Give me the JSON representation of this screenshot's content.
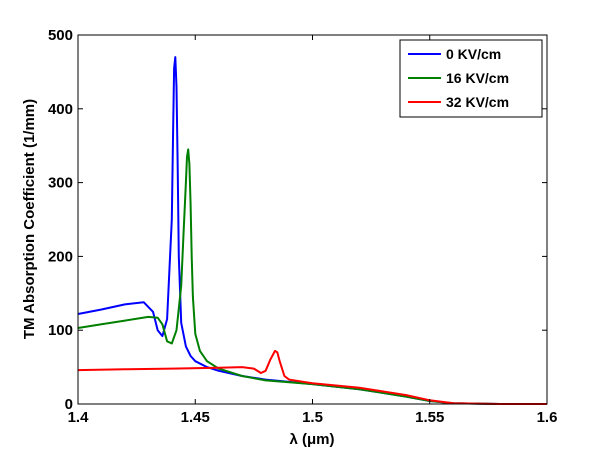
{
  "chart_data": {
    "type": "line",
    "title": "",
    "xlabel": "λ (μm)",
    "ylabel": "TM Absorption Coefficient (1/mm)",
    "xlim": [
      1.4,
      1.6
    ],
    "ylim": [
      0,
      500
    ],
    "xticks": [
      1.4,
      1.45,
      1.5,
      1.55,
      1.6
    ],
    "xtick_labels": [
      "1.4",
      "1.45",
      "1.5",
      "1.55",
      "1.6"
    ],
    "yticks": [
      0,
      100,
      200,
      300,
      400,
      500
    ],
    "ytick_labels": [
      "0",
      "100",
      "200",
      "300",
      "400",
      "500"
    ],
    "grid": false,
    "legend_position": "top-right",
    "series": [
      {
        "name": "0 KV/cm",
        "color": "#0000ff",
        "x": [
          1.4,
          1.41,
          1.42,
          1.428,
          1.432,
          1.434,
          1.436,
          1.438,
          1.44,
          1.4405,
          1.441,
          1.4415,
          1.442,
          1.4425,
          1.443,
          1.444,
          1.446,
          1.448,
          1.45,
          1.455,
          1.46,
          1.47,
          1.48,
          1.5,
          1.52,
          1.54,
          1.55,
          1.56,
          1.58,
          1.6
        ],
        "y": [
          122,
          128,
          135,
          138,
          125,
          100,
          92,
          115,
          250,
          360,
          455,
          470,
          430,
          320,
          200,
          110,
          78,
          65,
          58,
          50,
          45,
          38,
          33,
          27,
          20,
          10,
          4,
          1,
          0,
          0
        ]
      },
      {
        "name": "16 KV/cm",
        "color": "#008000",
        "x": [
          1.4,
          1.41,
          1.42,
          1.43,
          1.434,
          1.436,
          1.438,
          1.44,
          1.442,
          1.444,
          1.445,
          1.446,
          1.4465,
          1.447,
          1.4475,
          1.448,
          1.4485,
          1.449,
          1.45,
          1.452,
          1.455,
          1.46,
          1.47,
          1.48,
          1.5,
          1.52,
          1.54,
          1.55,
          1.56,
          1.58,
          1.6
        ],
        "y": [
          103,
          108,
          113,
          118,
          117,
          108,
          85,
          82,
          100,
          160,
          230,
          300,
          335,
          345,
          325,
          270,
          200,
          145,
          95,
          72,
          58,
          48,
          38,
          32,
          27,
          20,
          10,
          4,
          1,
          0,
          0
        ]
      },
      {
        "name": "32 KV/cm",
        "color": "#ff0000",
        "x": [
          1.4,
          1.42,
          1.44,
          1.46,
          1.47,
          1.475,
          1.478,
          1.48,
          1.482,
          1.484,
          1.485,
          1.486,
          1.488,
          1.49,
          1.5,
          1.52,
          1.54,
          1.55,
          1.56,
          1.58,
          1.6
        ],
        "y": [
          46,
          47,
          48,
          49,
          50,
          48,
          42,
          45,
          60,
          72,
          70,
          58,
          38,
          33,
          28,
          22,
          12,
          5,
          1,
          0,
          0
        ]
      }
    ]
  }
}
